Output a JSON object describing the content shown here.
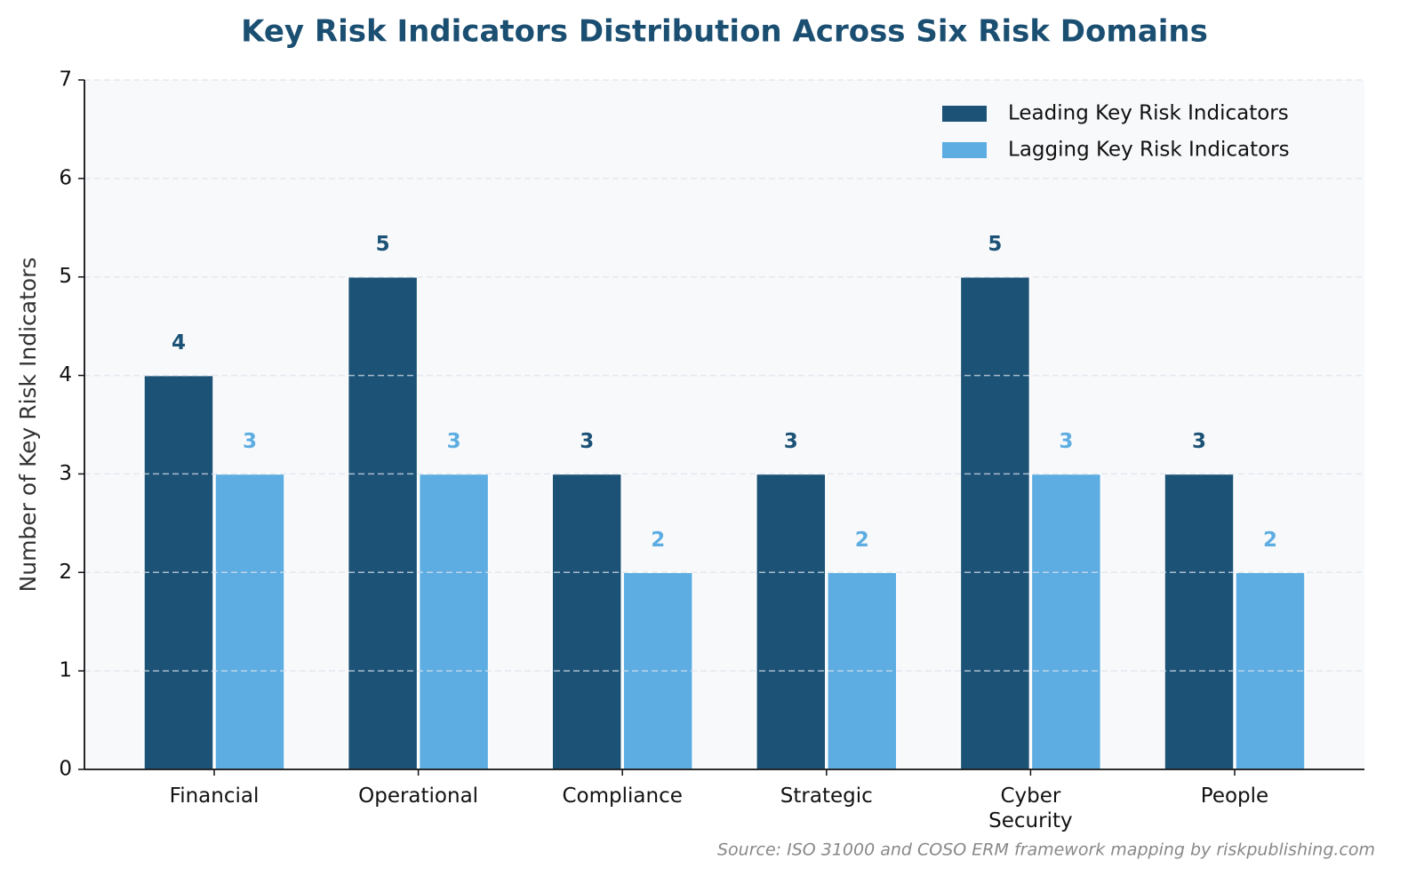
{
  "chart_data": {
    "type": "bar",
    "title": "Key Risk Indicators Distribution Across Six Risk Domains",
    "ylabel": "Number of Key Risk Indicators",
    "source": "Source: ISO 31000 and COSO ERM framework mapping by riskpublishing.com",
    "categories": [
      "Financial",
      "Operational",
      "Compliance",
      "Strategic",
      "Cyber\nSecurity",
      "People"
    ],
    "series": [
      {
        "name": "Leading Key Risk Indicators",
        "color": "#1b5276",
        "values": [
          4,
          5,
          3,
          3,
          5,
          3
        ]
      },
      {
        "name": "Lagging Key Risk Indicators",
        "color": "#5dade2",
        "values": [
          3,
          3,
          2,
          2,
          3,
          2
        ]
      }
    ],
    "ylim": [
      0,
      7
    ],
    "yticks": [
      0,
      1,
      2,
      3,
      4,
      5,
      6,
      7
    ],
    "grid": true,
    "legend": "upper right"
  }
}
